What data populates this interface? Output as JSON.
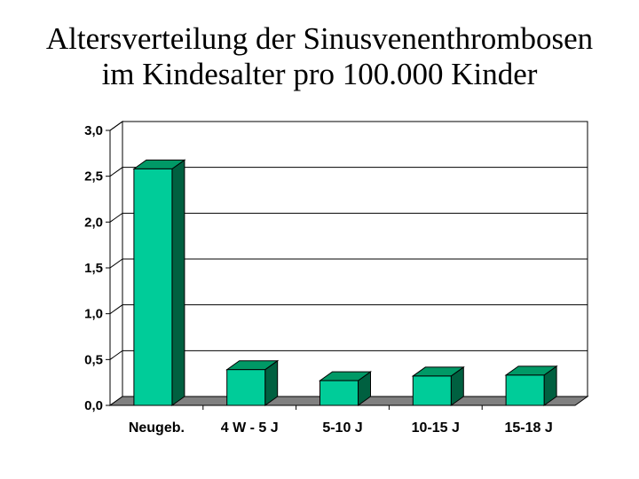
{
  "title": {
    "line1": "Altersverteilung der Sinusvenenthrombosen",
    "line2": "im Kindesalter pro 100.000 Kinder"
  },
  "colors": {
    "bar_front": "#00CC99",
    "bar_top": "#009966",
    "bar_side": "#006040",
    "floor": "#808080",
    "gridline": "#000000"
  },
  "chart_data": {
    "type": "bar",
    "categories": [
      "Neugeb.",
      "4 W - 5 J",
      "5-10 J",
      "10-15 J",
      "15-18 J"
    ],
    "values": [
      2.58,
      0.39,
      0.27,
      0.32,
      0.33
    ],
    "ylim": [
      0,
      3
    ],
    "yticks": [
      0,
      0.5,
      1,
      1.5,
      2,
      2.5,
      3
    ],
    "ytick_labels": [
      "0,0",
      "0,5",
      "1,0",
      "1,5",
      "2,0",
      "2,5",
      "3,0"
    ],
    "grid": true,
    "style": "3d"
  }
}
